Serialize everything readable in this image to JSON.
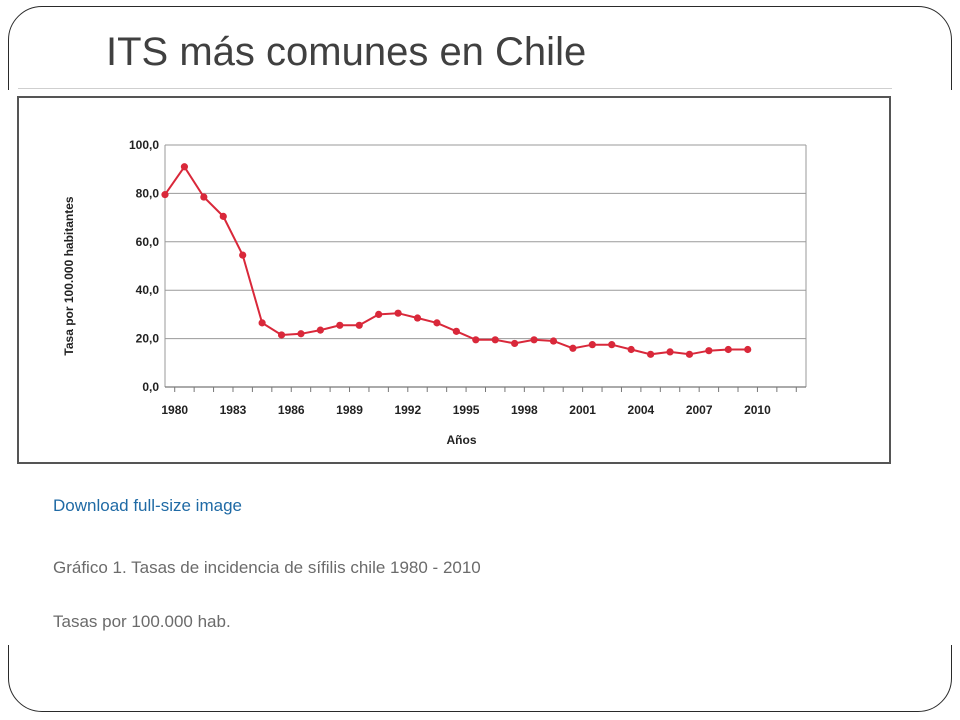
{
  "slide": {
    "title": "ITS más comunes en Chile"
  },
  "figure": {
    "download_link": "Download full-size image",
    "caption": "Gráfico 1. Tasas de incidencia de sífilis chile 1980 - 2010",
    "note": "Tasas por 100.000 hab."
  },
  "chart_data": {
    "type": "line",
    "title": "",
    "xlabel": "Años",
    "ylabel": "Tasa por 100.000 habitantes",
    "xlim": [
      1979.5,
      2012.5
    ],
    "ylim": [
      0,
      100
    ],
    "x_ticks": [
      "1980",
      "1983",
      "1986",
      "1989",
      "1992",
      "1995",
      "1998",
      "2001",
      "2004",
      "2007",
      "2010"
    ],
    "y_ticks": [
      "0,0",
      "20,0",
      "40,0",
      "60,0",
      "80,0",
      "100,0"
    ],
    "y_tick_values": [
      0,
      20,
      40,
      60,
      80,
      100
    ],
    "grid": true,
    "line_color": "#d9283a",
    "series": [
      {
        "x": [
          1979.5,
          1980.5,
          1981.5,
          1982.5,
          1983.5,
          1984.5,
          1985.5,
          1986.5,
          1987.5,
          1988.5,
          1989.5,
          1990.5,
          1991.5,
          1992.5,
          1993.5,
          1994.5,
          1995.5,
          1996.5,
          1997.5,
          1998.5,
          1999.5,
          2000.5,
          2001.5,
          2002.5,
          2003.5,
          2004.5,
          2005.5,
          2006.5,
          2007.5,
          2008.5,
          2009.5
        ],
        "values": [
          79.5,
          91.0,
          78.5,
          70.5,
          54.5,
          26.5,
          21.5,
          22.0,
          23.5,
          25.5,
          25.5,
          30.0,
          30.5,
          28.5,
          26.5,
          23.0,
          19.5,
          19.5,
          18.0,
          19.5,
          19.0,
          16.0,
          17.5,
          17.5,
          15.5,
          13.5,
          14.5,
          13.5,
          15.0,
          15.5,
          15.5
        ]
      }
    ]
  }
}
